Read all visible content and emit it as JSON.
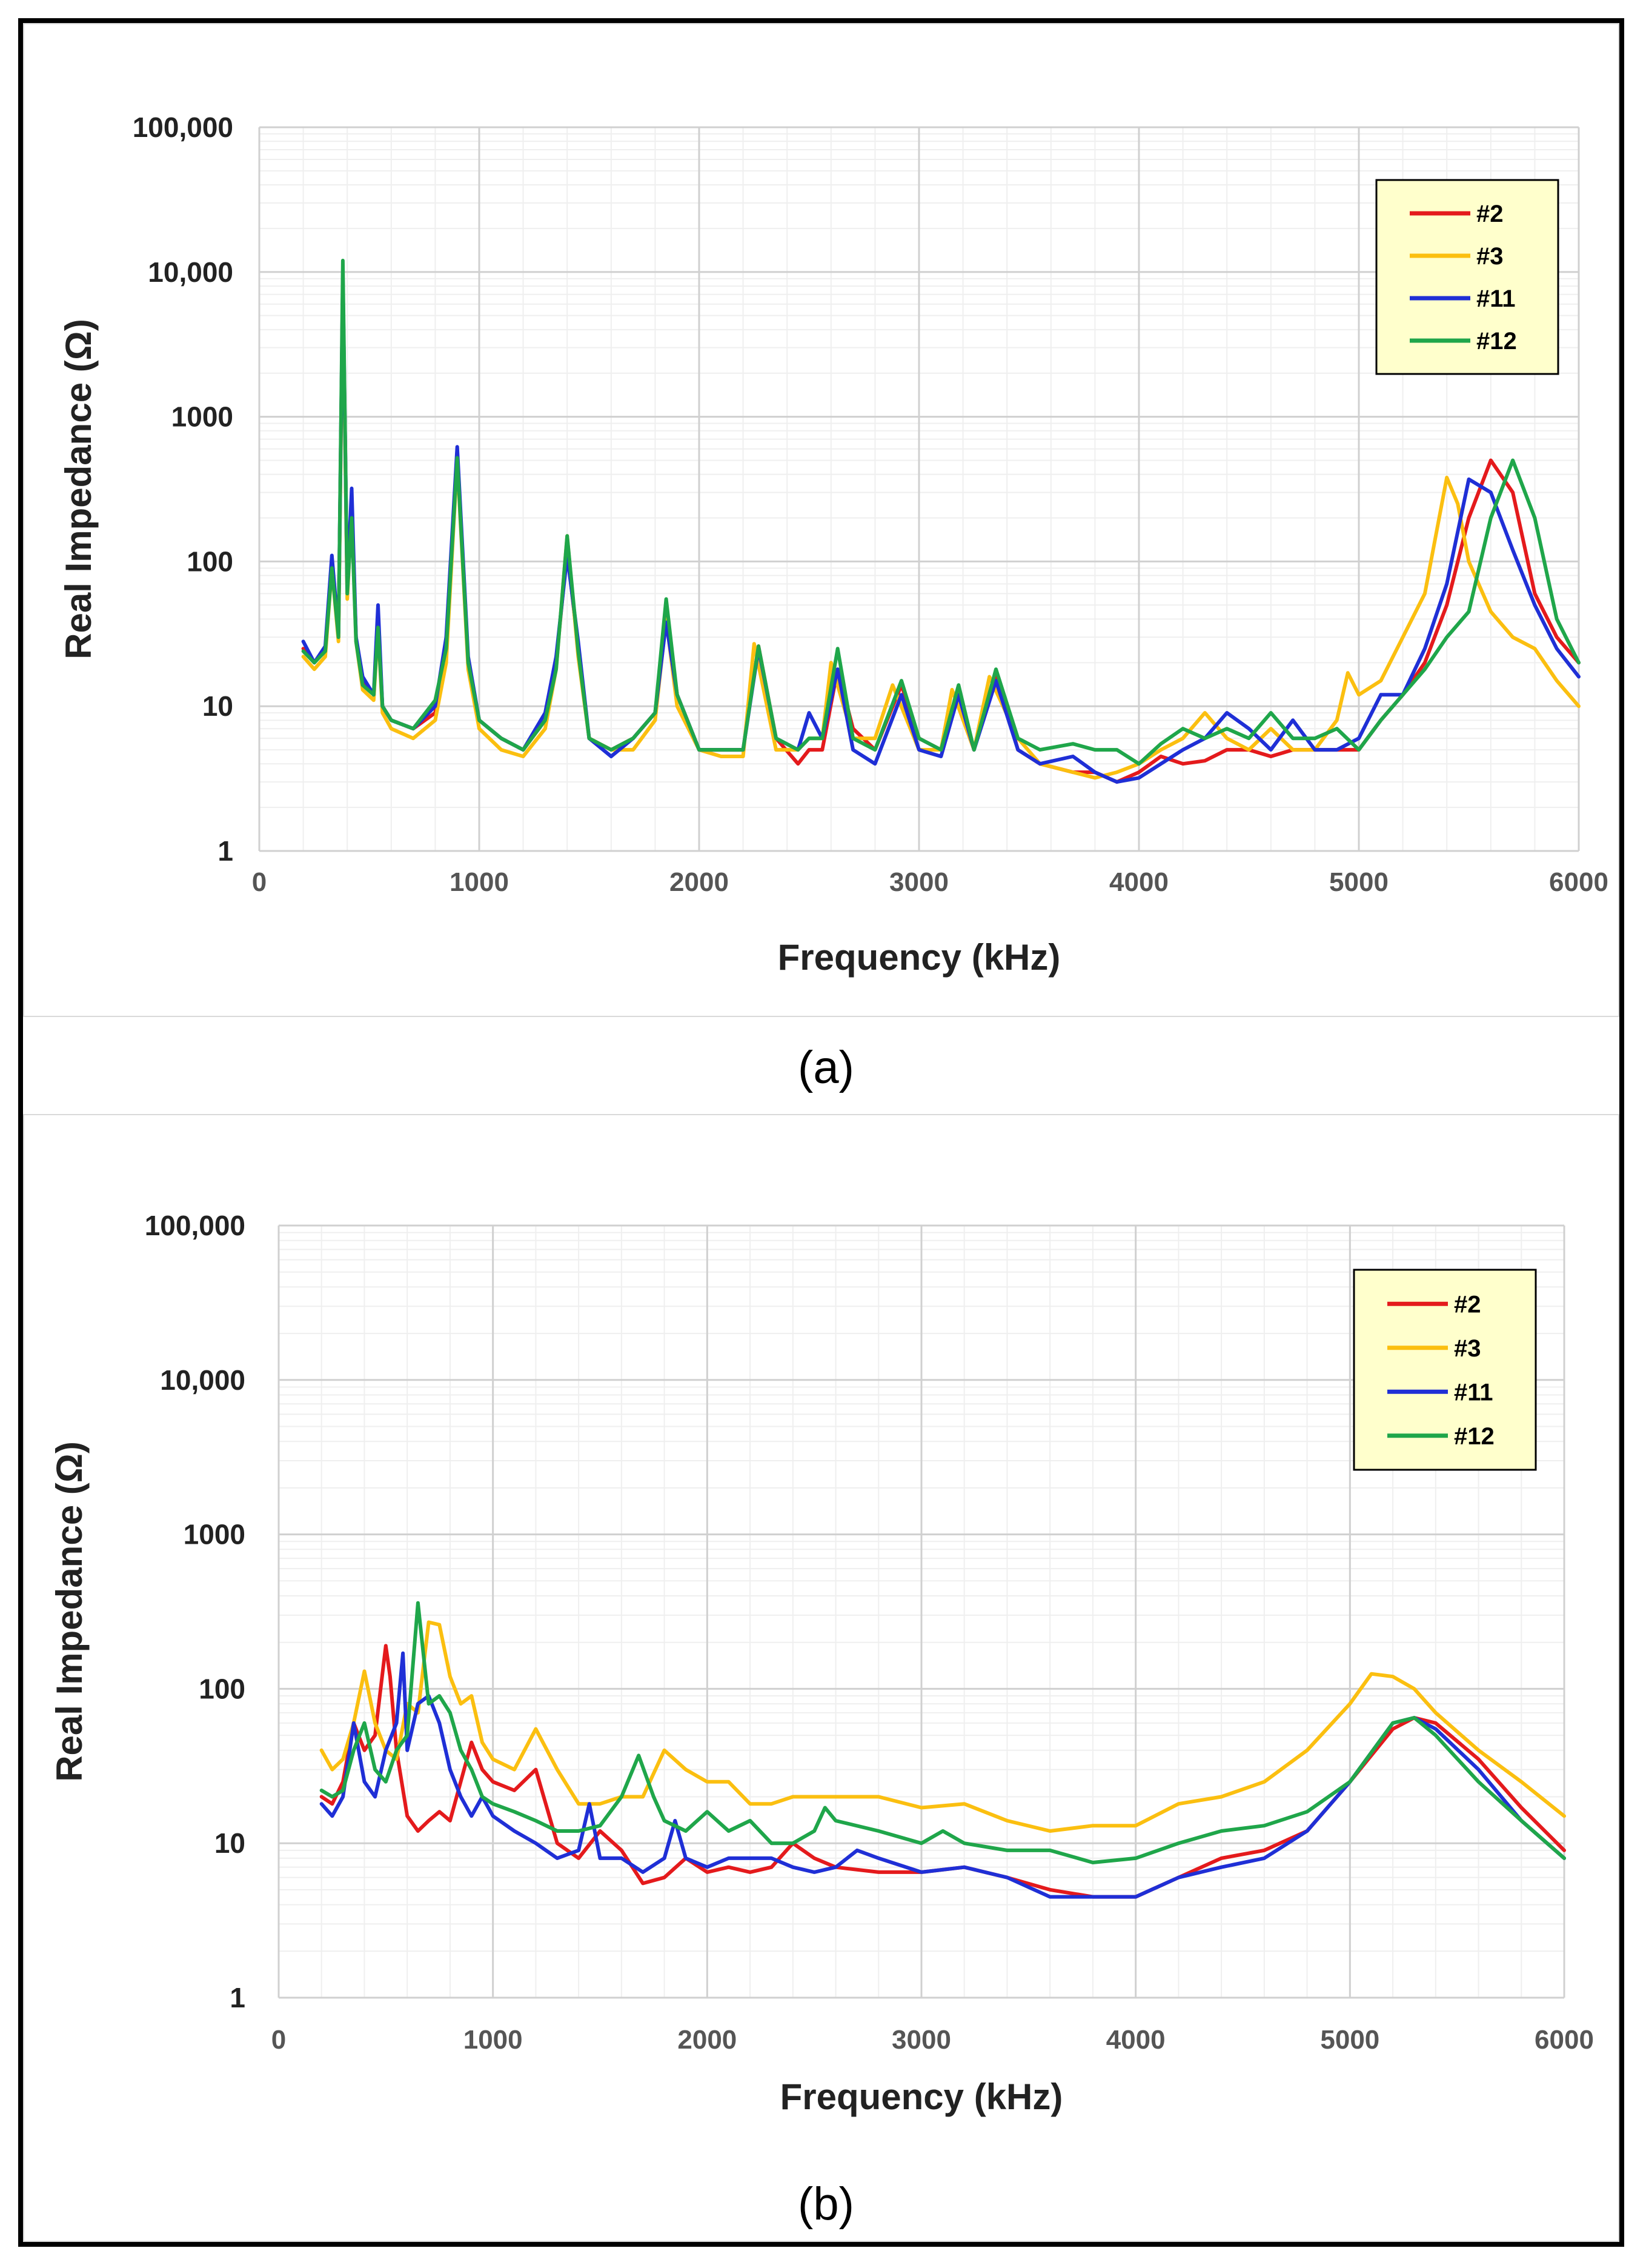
{
  "chart_data": [
    {
      "panel": "a",
      "type": "line",
      "caption": "(a)",
      "xlabel": "Frequency (kHz)",
      "ylabel": "Real Impedance (Ω)",
      "yscale": "log",
      "xlim": [
        0,
        6000
      ],
      "ylim": [
        1,
        100000
      ],
      "xticks": [
        "0",
        "1000",
        "2000",
        "3000",
        "4000",
        "5000",
        "6000"
      ],
      "yticks": [
        "1",
        "10",
        "100",
        "1000",
        "10,000",
        "100,000"
      ],
      "legend_position": "top-right",
      "series": [
        {
          "name": "#2",
          "color": "#e41a1c",
          "x": [
            200,
            250,
            300,
            330,
            360,
            380,
            400,
            420,
            440,
            470,
            520,
            540,
            560,
            600,
            700,
            800,
            850,
            900,
            950,
            1000,
            1100,
            1200,
            1300,
            1350,
            1400,
            1450,
            1500,
            1600,
            1700,
            1800,
            1850,
            1900,
            2000,
            2100,
            2200,
            2270,
            2350,
            2450,
            2500,
            2560,
            2630,
            2700,
            2800,
            2920,
            3000,
            3100,
            3180,
            3250,
            3350,
            3450,
            3550,
            3700,
            3800,
            3900,
            4000,
            4100,
            4200,
            4300,
            4400,
            4500,
            4600,
            4700,
            4800,
            4900,
            5000,
            5100,
            5200,
            5300,
            5400,
            5500,
            5600,
            5700,
            5800,
            5900,
            6000
          ],
          "y": [
            25,
            20,
            25,
            100,
            30,
            9000,
            60,
            250,
            30,
            15,
            12,
            40,
            10,
            8,
            7,
            9,
            25,
            550,
            20,
            8,
            6,
            5,
            8,
            20,
            120,
            25,
            6,
            5,
            6,
            9,
            45,
            12,
            5,
            5,
            5,
            26,
            6,
            4,
            5,
            5,
            18,
            7,
            5,
            14,
            6,
            5,
            12,
            5,
            17,
            5,
            4,
            3.5,
            3.5,
            3,
            3.5,
            4.5,
            4,
            4.2,
            5,
            5,
            4.5,
            5,
            5,
            5,
            5,
            8,
            12,
            20,
            50,
            200,
            500,
            300,
            60,
            30,
            20
          ]
        },
        {
          "name": "#3",
          "color": "#fbbf10",
          "x": [
            200,
            250,
            300,
            330,
            360,
            380,
            400,
            420,
            440,
            470,
            520,
            540,
            560,
            600,
            700,
            800,
            850,
            900,
            950,
            1000,
            1100,
            1200,
            1300,
            1350,
            1400,
            1450,
            1500,
            1600,
            1700,
            1800,
            1850,
            1900,
            2000,
            2100,
            2200,
            2250,
            2350,
            2450,
            2500,
            2560,
            2600,
            2700,
            2800,
            2880,
            3000,
            3100,
            3150,
            3250,
            3320,
            3450,
            3550,
            3700,
            3800,
            3900,
            4000,
            4100,
            4200,
            4300,
            4400,
            4500,
            4600,
            4700,
            4800,
            4900,
            4950,
            5000,
            5100,
            5200,
            5300,
            5400,
            5450,
            5500,
            5600,
            5700,
            5800,
            5900,
            6000
          ],
          "y": [
            22,
            18,
            22,
            90,
            28,
            8500,
            55,
            230,
            28,
            13,
            11,
            35,
            9,
            7,
            6,
            8,
            20,
            500,
            18,
            7,
            5,
            4.5,
            7,
            18,
            150,
            22,
            6,
            5,
            5,
            8,
            40,
            10,
            5,
            4.5,
            4.5,
            27,
            5,
            5,
            6,
            6,
            20,
            6,
            6,
            14,
            5,
            5,
            13,
            5,
            16,
            6,
            4,
            3.5,
            3.2,
            3.5,
            4,
            5,
            6,
            9,
            6,
            5,
            7,
            5,
            5,
            8,
            17,
            12,
            15,
            30,
            60,
            380,
            250,
            100,
            45,
            30,
            25,
            15,
            10
          ]
        },
        {
          "name": "#11",
          "color": "#1f2fd6",
          "x": [
            200,
            250,
            300,
            330,
            360,
            380,
            400,
            420,
            440,
            470,
            520,
            540,
            560,
            600,
            700,
            800,
            850,
            900,
            950,
            1000,
            1100,
            1200,
            1300,
            1350,
            1400,
            1450,
            1500,
            1600,
            1700,
            1800,
            1850,
            1900,
            2000,
            2100,
            2200,
            2270,
            2350,
            2450,
            2500,
            2560,
            2630,
            2700,
            2800,
            2920,
            3000,
            3100,
            3180,
            3250,
            3350,
            3450,
            3550,
            3700,
            3800,
            3900,
            4000,
            4100,
            4200,
            4300,
            4400,
            4500,
            4600,
            4700,
            4800,
            4900,
            5000,
            5100,
            5200,
            5300,
            5400,
            5500,
            5600,
            5700,
            5800,
            5900,
            6000
          ],
          "y": [
            28,
            20,
            26,
            110,
            32,
            9500,
            65,
            320,
            30,
            16,
            12,
            50,
            10,
            8,
            7,
            10,
            30,
            620,
            22,
            8,
            6,
            5,
            9,
            22,
            110,
            28,
            6,
            4.5,
            6,
            9,
            38,
            12,
            5,
            5,
            5,
            25,
            6,
            5,
            9,
            6,
            18,
            5,
            4,
            12,
            5,
            4.5,
            12,
            5,
            15,
            5,
            4,
            4.5,
            3.5,
            3,
            3.2,
            4,
            5,
            6,
            9,
            7,
            5,
            8,
            5,
            5,
            6,
            12,
            12,
            25,
            70,
            370,
            300,
            120,
            50,
            25,
            16
          ]
        },
        {
          "name": "#12",
          "color": "#1fa64a",
          "x": [
            200,
            250,
            300,
            330,
            360,
            380,
            400,
            420,
            440,
            470,
            520,
            540,
            560,
            600,
            700,
            800,
            850,
            900,
            950,
            1000,
            1100,
            1200,
            1300,
            1350,
            1400,
            1450,
            1500,
            1600,
            1700,
            1800,
            1850,
            1900,
            2000,
            2100,
            2200,
            2270,
            2350,
            2450,
            2500,
            2560,
            2630,
            2700,
            2800,
            2920,
            3000,
            3100,
            3180,
            3250,
            3350,
            3450,
            3550,
            3700,
            3800,
            3900,
            4000,
            4100,
            4200,
            4300,
            4400,
            4500,
            4600,
            4700,
            4800,
            4900,
            5000,
            5100,
            5200,
            5300,
            5400,
            5500,
            5600,
            5700,
            5800,
            5900,
            6000
          ],
          "y": [
            24,
            20,
            24,
            90,
            30,
            12000,
            60,
            200,
            28,
            14,
            12,
            35,
            10,
            8,
            7,
            11,
            25,
            520,
            20,
            8,
            6,
            5,
            8,
            18,
            150,
            24,
            6,
            5,
            6,
            9,
            55,
            12,
            5,
            5,
            5,
            26,
            6,
            5,
            6,
            6,
            25,
            6,
            5,
            15,
            6,
            5,
            14,
            5,
            18,
            6,
            5,
            5.5,
            5,
            5,
            4,
            5.5,
            7,
            6,
            7,
            6,
            9,
            6,
            6,
            7,
            5,
            8,
            12,
            18,
            30,
            45,
            200,
            500,
            200,
            40,
            20
          ]
        }
      ]
    },
    {
      "panel": "b",
      "type": "line",
      "caption": "(b)",
      "xlabel": "Frequency (kHz)",
      "ylabel": "Real Impedance (Ω)",
      "yscale": "log",
      "xlim": [
        0,
        6000
      ],
      "ylim": [
        1,
        100000
      ],
      "xticks": [
        "0",
        "1000",
        "2000",
        "3000",
        "4000",
        "5000",
        "6000"
      ],
      "yticks": [
        "1",
        "10",
        "100",
        "1000",
        "10,000",
        "100,000"
      ],
      "legend_position": "top-right",
      "series": [
        {
          "name": "#2",
          "color": "#e41a1c",
          "x": [
            200,
            250,
            300,
            350,
            400,
            450,
            500,
            520,
            550,
            600,
            650,
            700,
            750,
            800,
            900,
            950,
            1000,
            1100,
            1200,
            1300,
            1400,
            1500,
            1600,
            1700,
            1800,
            1900,
            2000,
            2100,
            2200,
            2300,
            2400,
            2500,
            2600,
            2800,
            3000,
            3200,
            3400,
            3600,
            3800,
            4000,
            4200,
            4400,
            4600,
            4800,
            5000,
            5200,
            5300,
            5400,
            5600,
            5800,
            6000
          ],
          "y": [
            20,
            18,
            25,
            60,
            40,
            50,
            190,
            120,
            40,
            15,
            12,
            14,
            16,
            14,
            45,
            30,
            25,
            22,
            30,
            10,
            8,
            12,
            9,
            5.5,
            6,
            8,
            6.5,
            7,
            6.5,
            7,
            10,
            8,
            7,
            6.5,
            6.5,
            7,
            6,
            5,
            4.5,
            4.5,
            6,
            8,
            9,
            12,
            25,
            55,
            65,
            60,
            35,
            17,
            9
          ]
        },
        {
          "name": "#3",
          "color": "#fbbf10",
          "x": [
            200,
            250,
            300,
            350,
            400,
            450,
            500,
            550,
            600,
            650,
            700,
            750,
            800,
            850,
            900,
            950,
            1000,
            1100,
            1200,
            1300,
            1400,
            1500,
            1600,
            1700,
            1800,
            1900,
            2000,
            2100,
            2200,
            2300,
            2400,
            2600,
            2800,
            3000,
            3200,
            3400,
            3600,
            3800,
            4000,
            4200,
            4400,
            4600,
            4800,
            5000,
            5100,
            5200,
            5300,
            5400,
            5600,
            5800,
            6000
          ],
          "y": [
            40,
            30,
            35,
            60,
            130,
            60,
            40,
            35,
            80,
            70,
            270,
            260,
            120,
            80,
            90,
            45,
            35,
            30,
            55,
            30,
            18,
            18,
            20,
            20,
            40,
            30,
            25,
            25,
            18,
            18,
            20,
            20,
            20,
            17,
            18,
            14,
            12,
            13,
            13,
            18,
            20,
            25,
            40,
            80,
            125,
            120,
            100,
            70,
            40,
            25,
            15
          ]
        },
        {
          "name": "#11",
          "color": "#1f2fd6",
          "x": [
            200,
            250,
            300,
            350,
            400,
            450,
            500,
            550,
            580,
            600,
            650,
            700,
            750,
            800,
            850,
            900,
            950,
            1000,
            1100,
            1200,
            1300,
            1400,
            1450,
            1500,
            1600,
            1700,
            1800,
            1850,
            1900,
            2000,
            2100,
            2200,
            2300,
            2400,
            2500,
            2600,
            2700,
            2800,
            3000,
            3200,
            3400,
            3600,
            3800,
            4000,
            4200,
            4400,
            4600,
            4800,
            5000,
            5200,
            5300,
            5400,
            5600,
            5800,
            6000
          ],
          "y": [
            18,
            15,
            20,
            60,
            25,
            20,
            40,
            60,
            170,
            40,
            80,
            90,
            60,
            30,
            20,
            15,
            20,
            15,
            12,
            10,
            8,
            9,
            18,
            8,
            8,
            6.5,
            8,
            14,
            8,
            7,
            8,
            8,
            8,
            7,
            6.5,
            7,
            9,
            8,
            6.5,
            7,
            6,
            4.5,
            4.5,
            4.5,
            6,
            7,
            8,
            12,
            25,
            60,
            65,
            55,
            30,
            14,
            8
          ]
        },
        {
          "name": "#12",
          "color": "#1fa64a",
          "x": [
            200,
            250,
            300,
            350,
            400,
            450,
            500,
            550,
            600,
            650,
            700,
            750,
            800,
            850,
            900,
            950,
            1000,
            1100,
            1200,
            1300,
            1400,
            1500,
            1600,
            1680,
            1750,
            1800,
            1900,
            2000,
            2100,
            2200,
            2300,
            2400,
            2500,
            2550,
            2600,
            2800,
            3000,
            3100,
            3200,
            3400,
            3600,
            3800,
            4000,
            4200,
            4400,
            4600,
            4800,
            5000,
            5200,
            5300,
            5400,
            5600,
            5800,
            6000
          ],
          "y": [
            22,
            20,
            22,
            40,
            60,
            30,
            25,
            40,
            50,
            360,
            80,
            90,
            70,
            40,
            30,
            20,
            18,
            16,
            14,
            12,
            12,
            13,
            20,
            37,
            20,
            14,
            12,
            16,
            12,
            14,
            10,
            10,
            12,
            17,
            14,
            12,
            10,
            12,
            10,
            9,
            9,
            7.5,
            8,
            10,
            12,
            13,
            16,
            25,
            60,
            65,
            50,
            25,
            14,
            8
          ]
        }
      ]
    }
  ]
}
